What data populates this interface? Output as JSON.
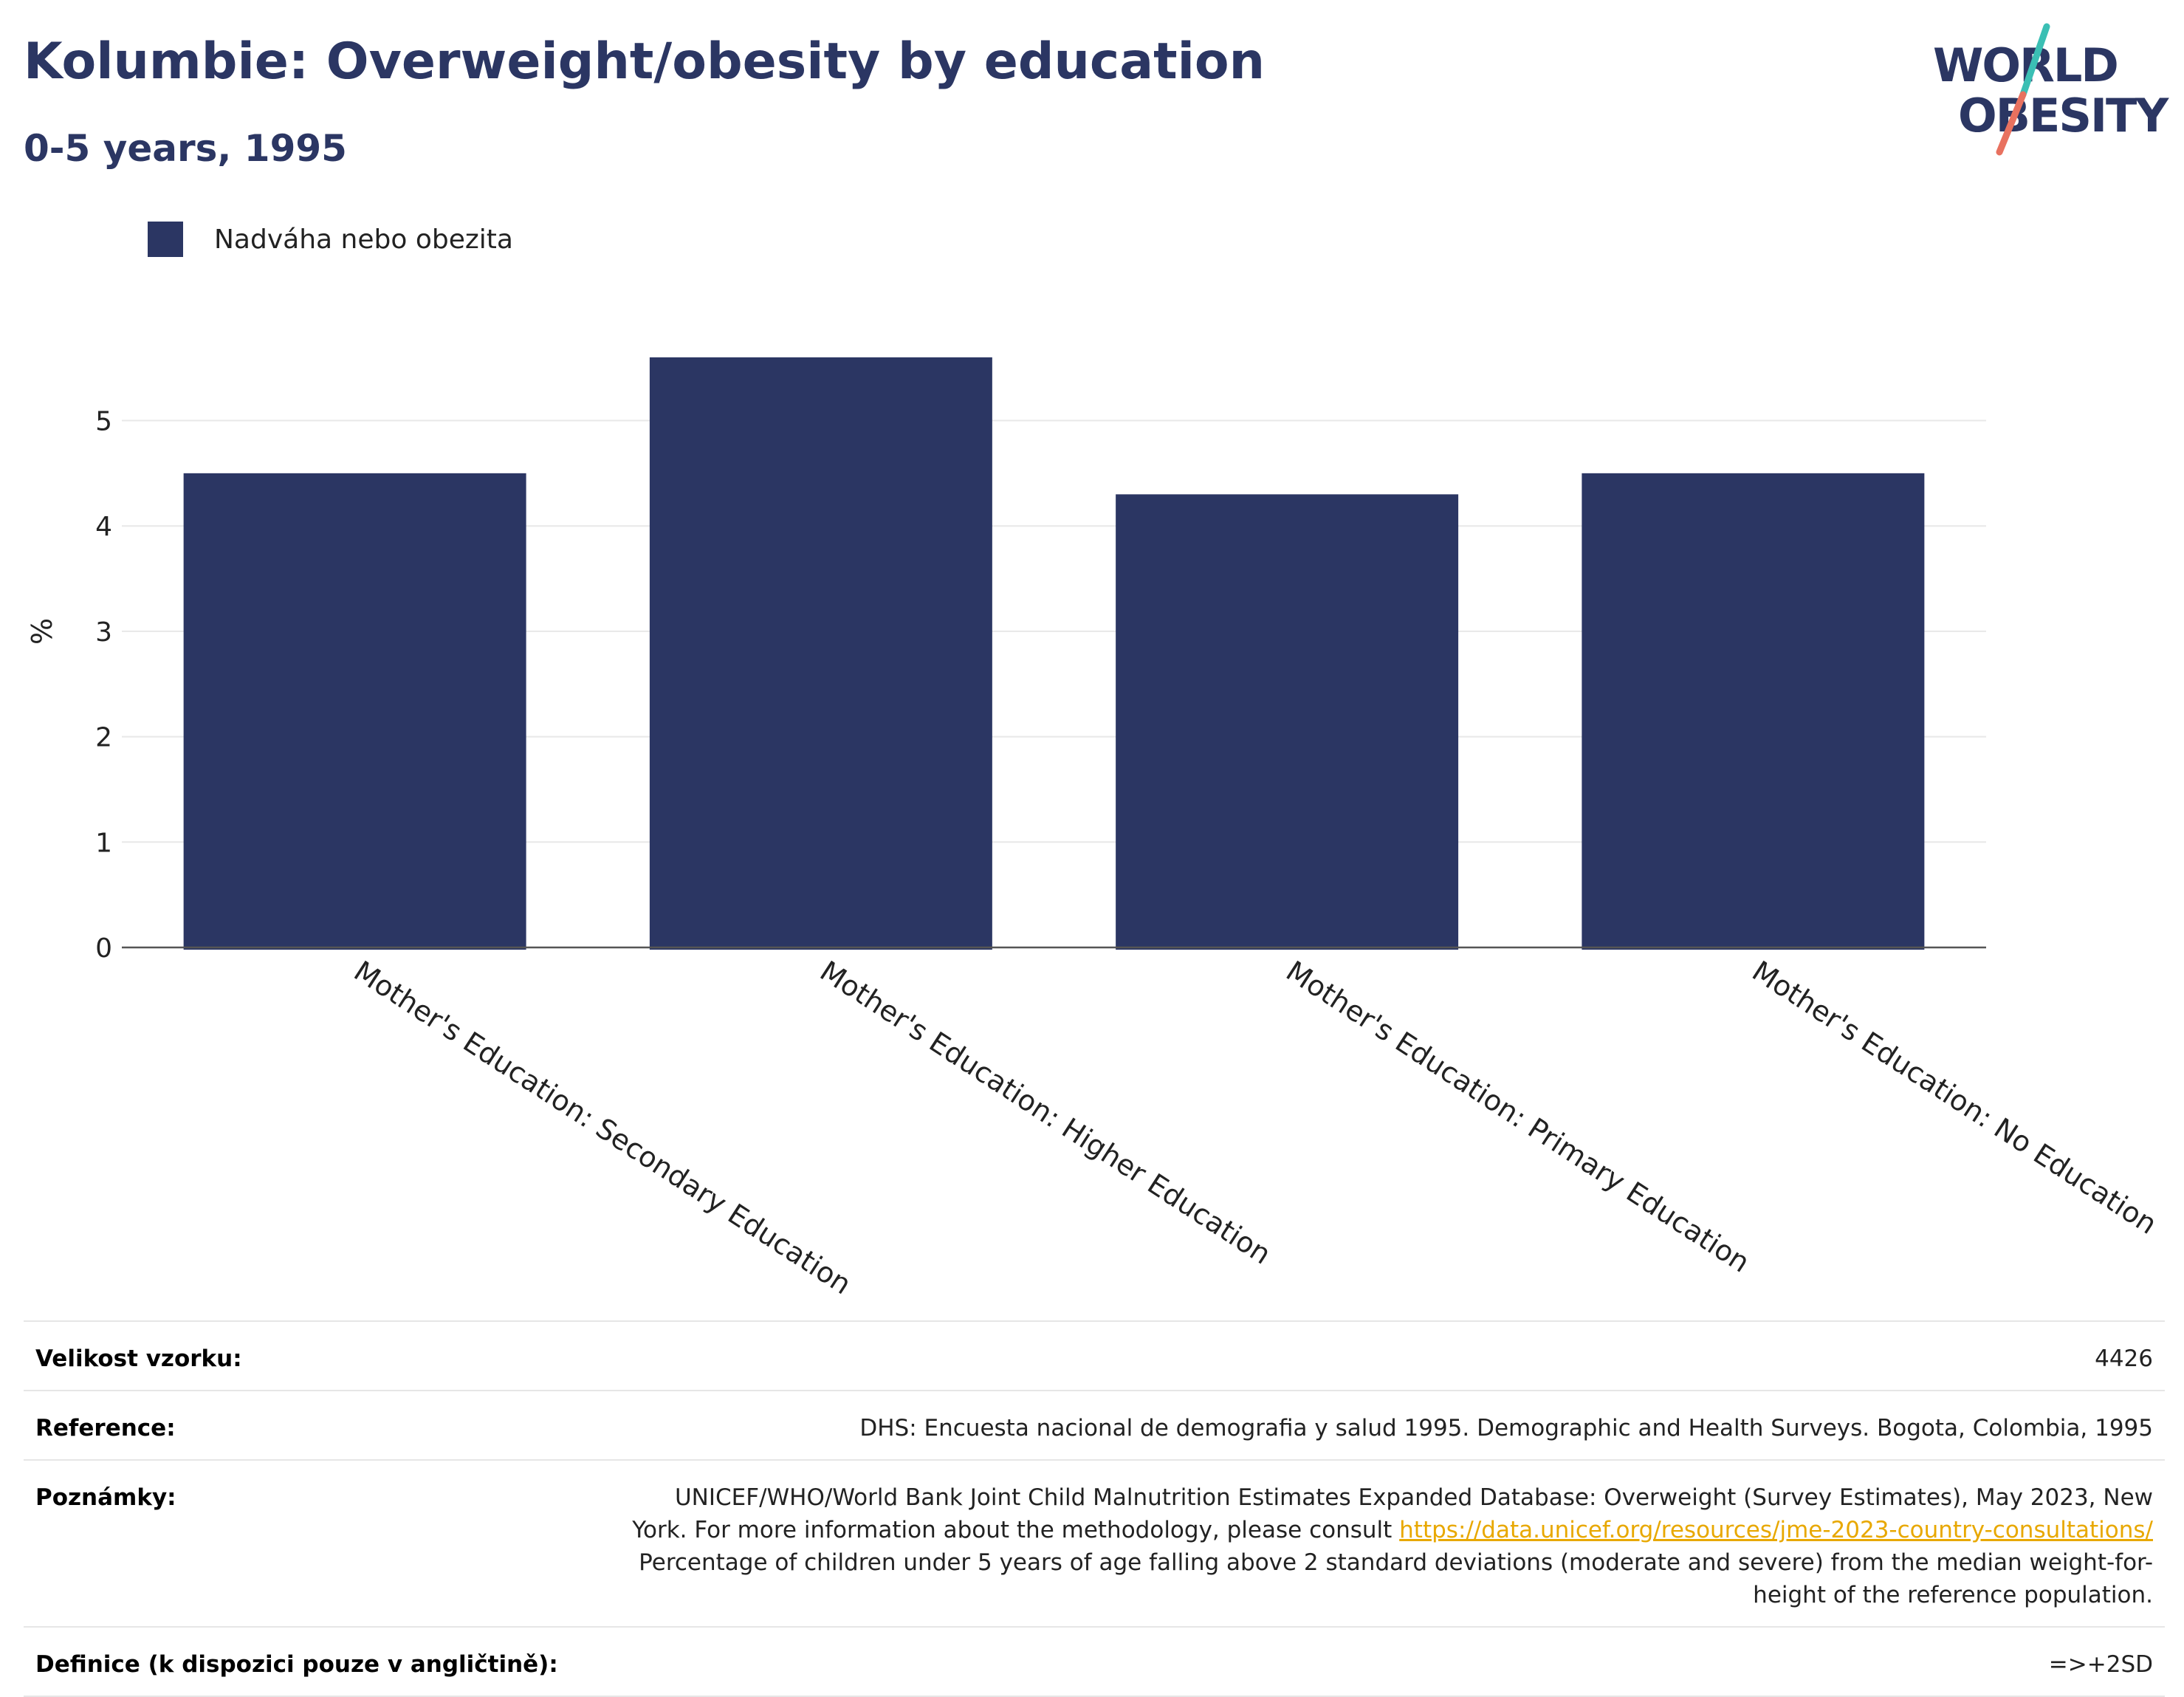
{
  "header": {
    "title": "Kolumbie: Overweight/obesity by education",
    "subtitle": "0-5 years, 1995"
  },
  "logo": {
    "line1": "WORLD",
    "line2": "OBESITY",
    "colors": {
      "text": "#2b3663",
      "slash_top": "#3bbfb4",
      "slash_bottom": "#e8715f"
    }
  },
  "chart_data": {
    "type": "bar",
    "categories": [
      "Mother's Education: Secondary Education",
      "Mother's Education: Higher Education",
      "Mother's Education: Primary Education",
      "Mother's Education: No Education"
    ],
    "series": [
      {
        "name": "Nadváha nebo obezita",
        "values": [
          4.5,
          5.6,
          4.3,
          4.5
        ],
        "color": "#2b3663"
      }
    ],
    "ylabel": "%",
    "ylim": [
      0,
      6
    ],
    "yticks": [
      0,
      1,
      2,
      3,
      4,
      5
    ],
    "grid": true,
    "legend": "top-left"
  },
  "meta": {
    "sample_label": "Velikost vzorku:",
    "sample_value": "4426",
    "reference_label": "Reference:",
    "reference_value": "DHS: Encuesta nacional de demografia y salud 1995. Demographic and Health Surveys. Bogota, Colombia, 1995",
    "notes_label": "Poznámky:",
    "notes_before": "UNICEF/WHO/World Bank Joint Child Malnutrition Estimates Expanded Database: Overweight (Survey Estimates), May 2023, New York. For more information about the methodology, please consult",
    "notes_link": "https://data.unicef.org/resources/jme-2023-country-consultations/",
    "notes_after": "Percentage of children under 5 years of age falling above 2 standard deviations (moderate and severe) from the median weight-for-height of the reference population.",
    "definition_label": "Definice (k dispozici pouze v angličtině):",
    "definition_value": "=>+2SD"
  }
}
